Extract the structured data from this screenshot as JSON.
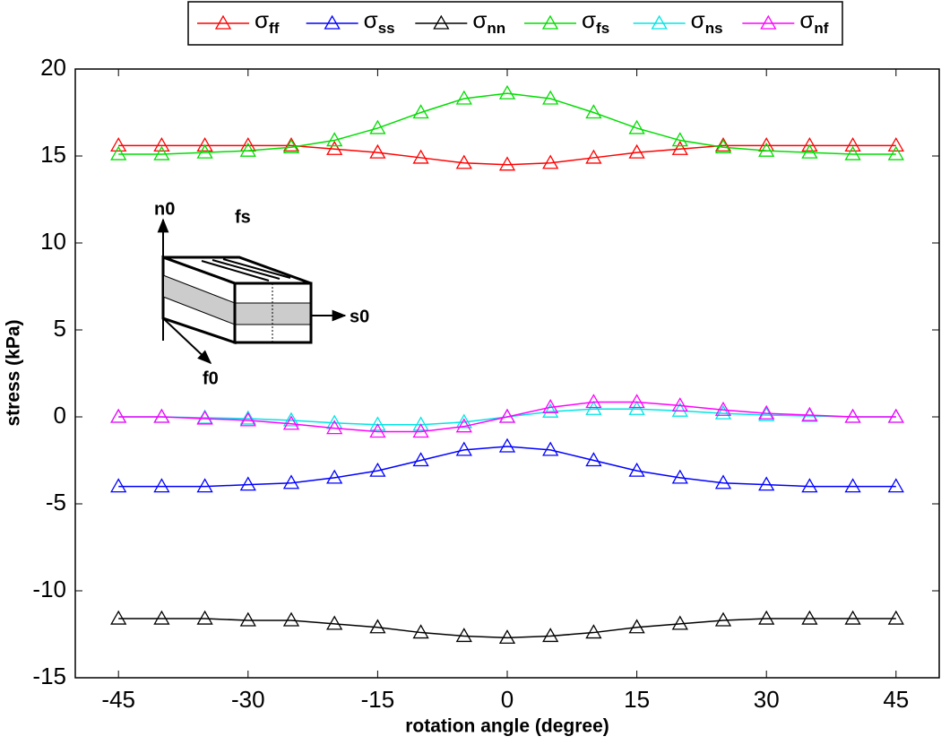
{
  "chart_data": {
    "type": "line",
    "x_label": "rotation angle (degree)",
    "y_label": "stress (kPa)",
    "x": [
      -45,
      -40,
      -35,
      -30,
      -25,
      -20,
      -15,
      -10,
      -5,
      0,
      5,
      10,
      15,
      20,
      25,
      30,
      35,
      40,
      45
    ],
    "series": [
      {
        "name": "σff",
        "color": "#ff0000",
        "values": [
          15.6,
          15.6,
          15.6,
          15.6,
          15.6,
          15.4,
          15.2,
          14.9,
          14.6,
          14.5,
          14.6,
          14.9,
          15.2,
          15.4,
          15.6,
          15.6,
          15.6,
          15.6,
          15.6
        ]
      },
      {
        "name": "σss",
        "color": "#0000ff",
        "values": [
          -4.0,
          -4.0,
          -4.0,
          -3.9,
          -3.8,
          -3.5,
          -3.1,
          -2.5,
          -1.9,
          -1.7,
          -1.9,
          -2.5,
          -3.1,
          -3.5,
          -3.8,
          -3.9,
          -4.0,
          -4.0,
          -4.0
        ]
      },
      {
        "name": "σnn",
        "color": "#000000",
        "values": [
          -11.6,
          -11.6,
          -11.6,
          -11.7,
          -11.7,
          -11.9,
          -12.1,
          -12.4,
          -12.6,
          -12.7,
          -12.6,
          -12.4,
          -12.1,
          -11.9,
          -11.7,
          -11.6,
          -11.6,
          -11.6,
          -11.6
        ]
      },
      {
        "name": "σfs",
        "color": "#00dd00",
        "values": [
          15.1,
          15.1,
          15.2,
          15.3,
          15.5,
          15.9,
          16.6,
          17.5,
          18.3,
          18.6,
          18.3,
          17.5,
          16.6,
          15.9,
          15.5,
          15.3,
          15.2,
          15.1,
          15.1
        ]
      },
      {
        "name": "σns",
        "color": "#00e5e5",
        "values": [
          0,
          0,
          -0.05,
          -0.1,
          -0.2,
          -0.35,
          -0.45,
          -0.45,
          -0.3,
          0,
          0.3,
          0.45,
          0.45,
          0.35,
          0.2,
          0.1,
          0.05,
          0,
          0
        ]
      },
      {
        "name": "σnf",
        "color": "#ff00ff",
        "values": [
          0,
          0,
          -0.1,
          -0.2,
          -0.4,
          -0.65,
          -0.85,
          -0.85,
          -0.55,
          0,
          0.55,
          0.85,
          0.85,
          0.65,
          0.4,
          0.2,
          0.1,
          0,
          0
        ]
      }
    ],
    "xlim": [
      -50,
      50
    ],
    "ylim": [
      -15,
      20
    ],
    "xticks": [
      -45,
      -30,
      -15,
      0,
      15,
      30,
      45
    ],
    "yticks": [
      -15,
      -10,
      -5,
      0,
      5,
      10,
      15,
      20
    ],
    "legend": "top",
    "annotations": [
      "n0",
      "fs",
      "s0",
      "f0"
    ]
  }
}
